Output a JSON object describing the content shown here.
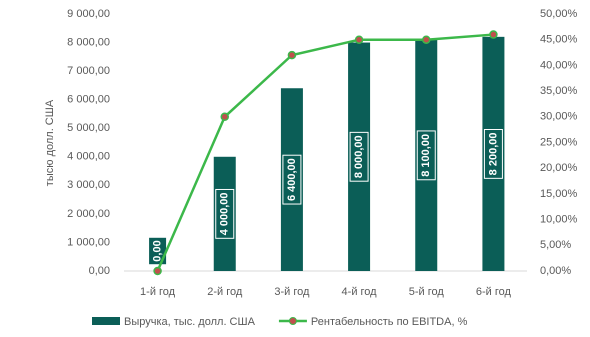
{
  "chart_data": {
    "type": "bar_line",
    "y_label": "тысю долл. США",
    "categories": [
      "1-й год",
      "2-й год",
      "3-й год",
      "4-й год",
      "5-й год",
      "6-й год"
    ],
    "series": [
      {
        "name": "Выручка, тыс. долл. США",
        "type": "bar",
        "color": "#0b5e57",
        "values": [
          0,
          4000,
          6400,
          8000,
          8100,
          8200
        ],
        "value_labels": [
          "0,00",
          "4 000,00",
          "6 400,00",
          "8 000,00",
          "8 100,00",
          "8 200,00"
        ]
      },
      {
        "name": "Рентабельность по EBITDA, %",
        "type": "line",
        "axis": "y2",
        "color": "#3cb84a",
        "marker_color": "#c0504d",
        "values": [
          0,
          30,
          42,
          45,
          45,
          46
        ]
      }
    ],
    "ylim": [
      0,
      9000
    ],
    "yticks": [
      {
        "value": 0,
        "label": "0,00"
      },
      {
        "value": 1000,
        "label": "1 000,00"
      },
      {
        "value": 2000,
        "label": "2 000,00"
      },
      {
        "value": 3000,
        "label": "3 000,00"
      },
      {
        "value": 4000,
        "label": "4 000,00"
      },
      {
        "value": 5000,
        "label": "5 000,00"
      },
      {
        "value": 6000,
        "label": "6 000,00"
      },
      {
        "value": 7000,
        "label": "7 000,00"
      },
      {
        "value": 8000,
        "label": "8 000,00"
      },
      {
        "value": 9000,
        "label": "9 000,00"
      }
    ],
    "y2lim": [
      0,
      50
    ],
    "y2ticks": [
      {
        "value": 0,
        "label": "0,00%"
      },
      {
        "value": 5,
        "label": "5,00%"
      },
      {
        "value": 10,
        "label": "10,00%"
      },
      {
        "value": 15,
        "label": "15,00%"
      },
      {
        "value": 20,
        "label": "20,00%"
      },
      {
        "value": 25,
        "label": "25,00%"
      },
      {
        "value": 30,
        "label": "30,00%"
      },
      {
        "value": 35,
        "label": "35,00%"
      },
      {
        "value": 40,
        "label": "40,00%"
      },
      {
        "value": 45,
        "label": "45,00%"
      },
      {
        "value": 50,
        "label": "50,00%"
      }
    ],
    "legend": "bottom"
  }
}
